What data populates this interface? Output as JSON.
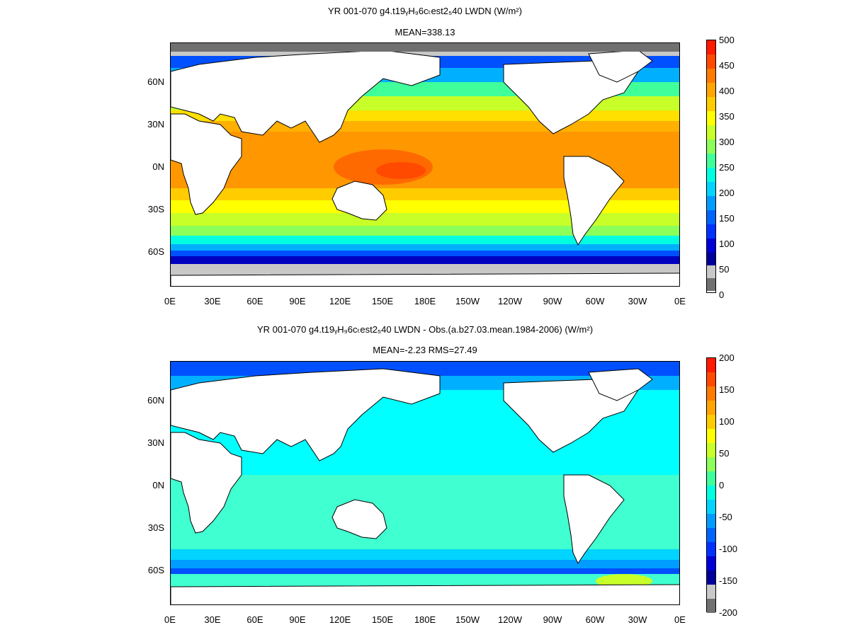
{
  "panels": [
    {
      "title": "YR 001-070 g4.t19ᵧH₉6cₜest2₅40 LWDN (W/m²)",
      "subtitle": "MEAN=338.13",
      "colorbar": {
        "labels": [
          "500",
          "450",
          "400",
          "350",
          "300",
          "250",
          "200",
          "150",
          "100",
          "50",
          "0"
        ],
        "colors": [
          "#ff1a00",
          "#ff4a00",
          "#ff7a00",
          "#ffa400",
          "#ffcc00",
          "#ffff00",
          "#c8ff28",
          "#8cff5a",
          "#40ff9a",
          "#00ffe0",
          "#00d4ff",
          "#009cff",
          "#0064ff",
          "#0032ff",
          "#0000d8",
          "#00009a",
          "#c8c8c8",
          "#707070"
        ]
      }
    },
    {
      "title": "YR 001-070 g4.t19ᵧH₉6cₜest2₅40 LWDN - Obs.(a.b27.03.mean.1984-2006) (W/m²)",
      "subtitle": "MEAN=-2.23 RMS=27.49",
      "colorbar": {
        "labels": [
          "200",
          "150",
          "100",
          "50",
          "0",
          "-50",
          "-100",
          "-150",
          "-200"
        ],
        "colors": [
          "#ff1a00",
          "#ff4a00",
          "#ff7a00",
          "#ffa400",
          "#ffcc00",
          "#ffff00",
          "#c8ff28",
          "#8cff5a",
          "#40ff9a",
          "#00ffe0",
          "#00d4ff",
          "#009cff",
          "#0064ff",
          "#0032ff",
          "#0000d8",
          "#00009a",
          "#c8c8c8",
          "#707070"
        ]
      }
    }
  ],
  "lat_labels": [
    "60N",
    "30N",
    "0N",
    "30S",
    "60S"
  ],
  "lon_labels": [
    "0E",
    "30E",
    "60E",
    "90E",
    "120E",
    "150E",
    "180E",
    "150W",
    "120W",
    "90W",
    "60W",
    "30W",
    "0E"
  ]
}
